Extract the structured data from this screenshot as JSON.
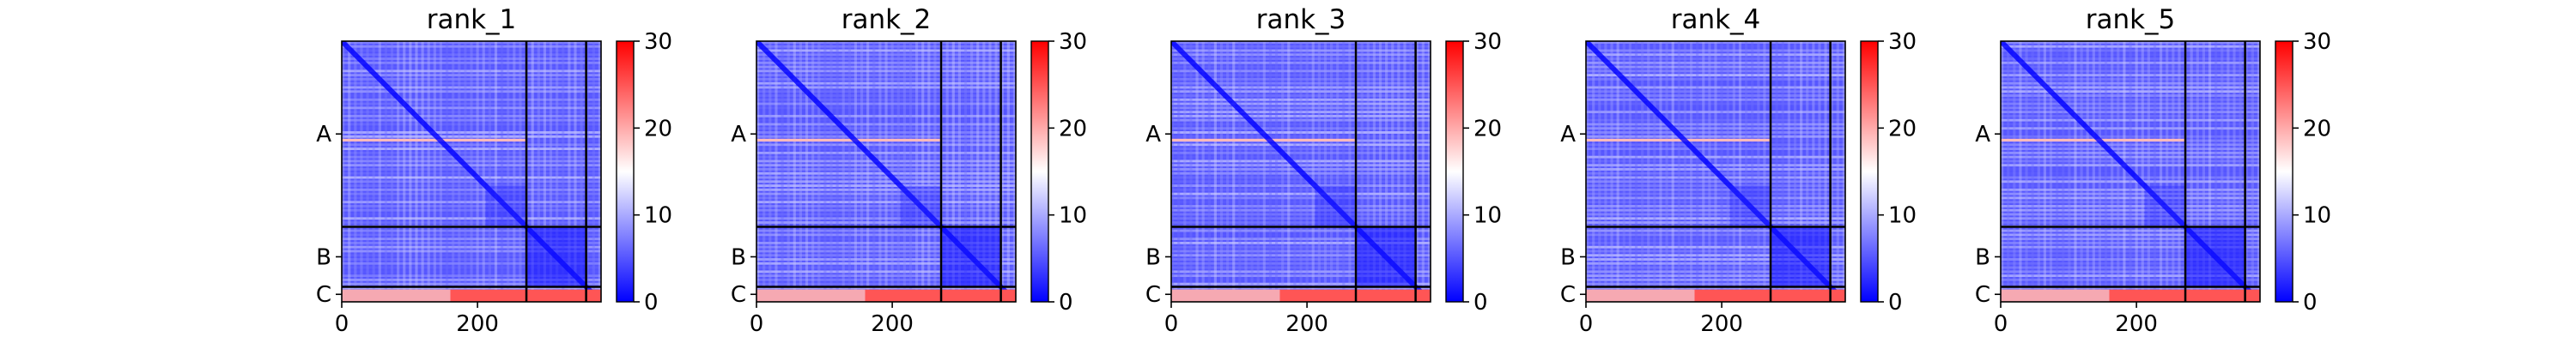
{
  "chart_data": [
    {
      "type": "heatmap",
      "title": "rank_1",
      "x_ticks": [
        0,
        200
      ],
      "xlim": [
        0,
        382
      ],
      "chain_labels": [
        "A",
        "B",
        "C"
      ],
      "chain_boundaries": [
        272,
        360
      ],
      "colorbar": {
        "min": 0,
        "max": 30,
        "ticks": [
          0,
          10,
          20,
          30
        ],
        "colormap": "bwr"
      },
      "bright_rows": [
        145
      ],
      "bottom_band_value": 25
    },
    {
      "type": "heatmap",
      "title": "rank_2",
      "x_ticks": [
        0,
        200
      ],
      "xlim": [
        0,
        382
      ],
      "chain_labels": [
        "A",
        "B",
        "C"
      ],
      "chain_boundaries": [
        272,
        360
      ],
      "colorbar": {
        "min": 0,
        "max": 30,
        "ticks": [
          0,
          10,
          20,
          30
        ],
        "colormap": "bwr"
      },
      "bright_rows": [
        145
      ],
      "bottom_band_value": 25
    },
    {
      "type": "heatmap",
      "title": "rank_3",
      "x_ticks": [
        0,
        200
      ],
      "xlim": [
        0,
        382
      ],
      "chain_labels": [
        "A",
        "B",
        "C"
      ],
      "chain_boundaries": [
        272,
        360
      ],
      "colorbar": {
        "min": 0,
        "max": 30,
        "ticks": [
          0,
          10,
          20,
          30
        ],
        "colormap": "bwr"
      },
      "bright_rows": [
        145
      ],
      "bottom_band_value": 25
    },
    {
      "type": "heatmap",
      "title": "rank_4",
      "x_ticks": [
        0,
        200
      ],
      "xlim": [
        0,
        382
      ],
      "chain_labels": [
        "A",
        "B",
        "C"
      ],
      "chain_boundaries": [
        272,
        360
      ],
      "colorbar": {
        "min": 0,
        "max": 30,
        "ticks": [
          0,
          10,
          20,
          30
        ],
        "colormap": "bwr"
      },
      "bright_rows": [
        145
      ],
      "bottom_band_value": 25
    },
    {
      "type": "heatmap",
      "title": "rank_5",
      "x_ticks": [
        0,
        200
      ],
      "xlim": [
        0,
        382
      ],
      "chain_labels": [
        "A",
        "B",
        "C"
      ],
      "chain_boundaries": [
        272,
        360
      ],
      "colorbar": {
        "min": 0,
        "max": 30,
        "ticks": [
          0,
          10,
          20,
          30
        ],
        "colormap": "bwr"
      },
      "bright_rows": [
        145
      ],
      "bottom_band_value": 25
    }
  ]
}
